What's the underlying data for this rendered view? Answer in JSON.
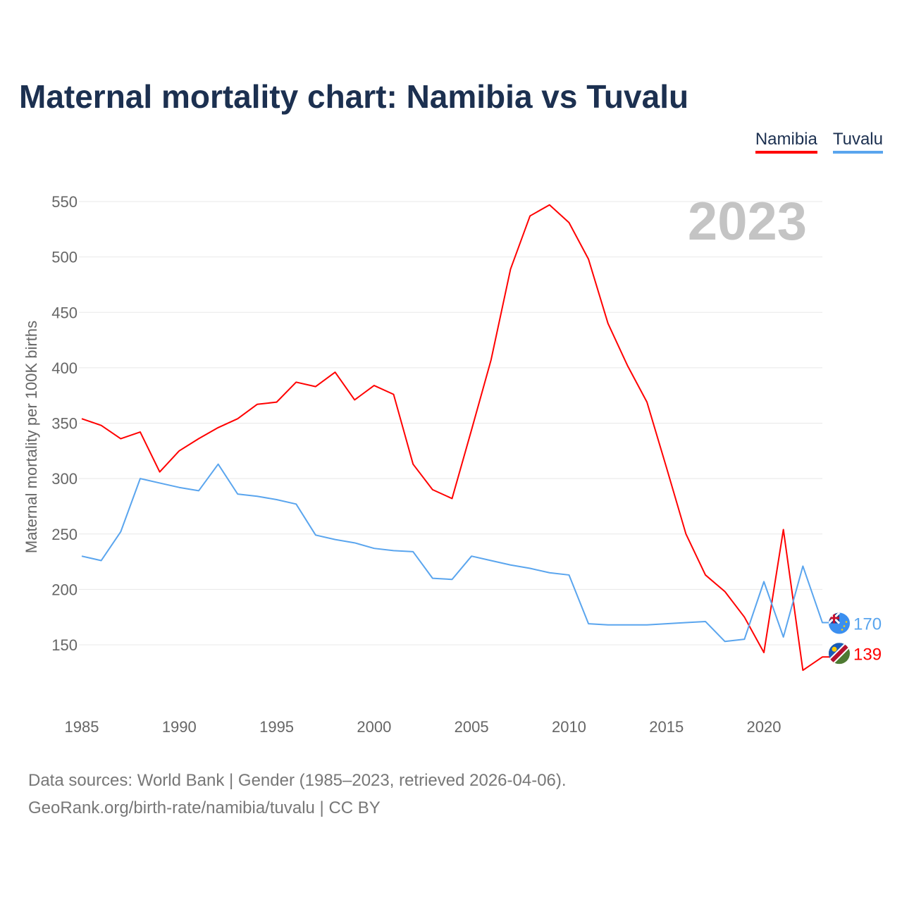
{
  "title": "Maternal mortality chart: Namibia vs Tuvalu",
  "year_badge": "2023",
  "footer": {
    "line1": "Data sources: World Bank | Gender (1985–2023, retrieved 2026-04-06).",
    "line2": "GeoRank.org/birth-rate/namibia/tuvalu | CC BY"
  },
  "chart_data": {
    "type": "line",
    "title": "Maternal mortality chart: Namibia vs Tuvalu",
    "xlabel": "",
    "ylabel": "Maternal mortality per 100K births",
    "xlim": [
      1985,
      2023
    ],
    "ylim": [
      100,
      560
    ],
    "xticks": [
      1985,
      1990,
      1995,
      2000,
      2005,
      2010,
      2015,
      2020
    ],
    "yticks": [
      150,
      200,
      250,
      300,
      350,
      400,
      450,
      500,
      550
    ],
    "grid": true,
    "legend": "top-right",
    "x": [
      1985,
      1986,
      1987,
      1988,
      1989,
      1990,
      1991,
      1992,
      1993,
      1994,
      1995,
      1996,
      1997,
      1998,
      1999,
      2000,
      2001,
      2002,
      2003,
      2004,
      2005,
      2006,
      2007,
      2008,
      2009,
      2010,
      2011,
      2012,
      2013,
      2014,
      2015,
      2016,
      2017,
      2018,
      2019,
      2020,
      2021,
      2022,
      2023
    ],
    "series": [
      {
        "name": "Namibia",
        "color": "#ff0000",
        "end_label": "139",
        "values": [
          354,
          348,
          336,
          342,
          306,
          325,
          336,
          346,
          354,
          367,
          369,
          387,
          383,
          396,
          371,
          384,
          376,
          313,
          290,
          282,
          344,
          407,
          489,
          537,
          547,
          531,
          498,
          440,
          402,
          369,
          310,
          250,
          213,
          198,
          175,
          143,
          254,
          127,
          139
        ]
      },
      {
        "name": "Tuvalu",
        "color": "#5aa5ee",
        "end_label": "170",
        "values": [
          230,
          226,
          252,
          300,
          296,
          292,
          289,
          313,
          286,
          284,
          281,
          277,
          249,
          245,
          242,
          237,
          235,
          234,
          210,
          209,
          230,
          226,
          222,
          219,
          215,
          213,
          169,
          168,
          168,
          168,
          169,
          170,
          171,
          153,
          155,
          207,
          157,
          221,
          170
        ]
      }
    ]
  }
}
